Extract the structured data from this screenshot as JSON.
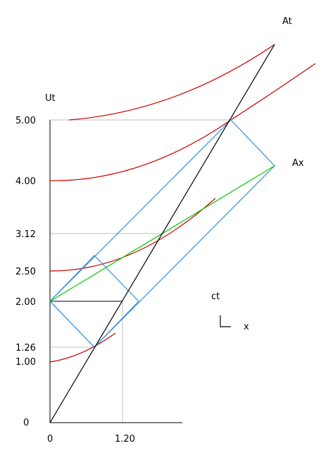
{
  "labels": {
    "y_axis_title": "Ut",
    "line_at": "At",
    "line_ax": "Ax",
    "legend_ct": "ct",
    "legend_x": "x"
  },
  "y_ticks": [
    "5.00",
    "4.00",
    "3.12",
    "2.50",
    "2.00",
    "1.26",
    "1.00",
    "0"
  ],
  "x_ticks": [
    "0",
    "1.20"
  ],
  "colors": {
    "axis": "#000000",
    "grid": "#bfbfbf",
    "hyperbola": "#cc0000",
    "rhombus": "#3a8fd9",
    "diagonal": "#00cc00",
    "worldline": "#000000"
  }
}
